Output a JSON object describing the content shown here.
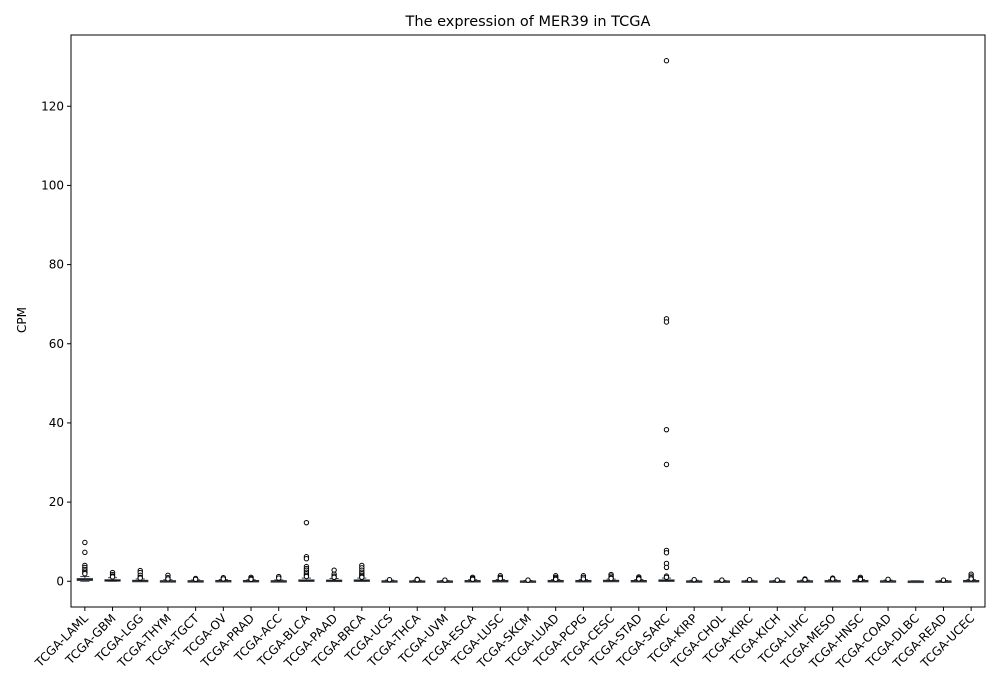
{
  "chart_data": {
    "type": "box",
    "title": "The expression of MER39 in TCGA",
    "xlabel": "",
    "ylabel": "CPM",
    "ylim": [
      -6.5,
      138
    ],
    "yticks": [
      0,
      20,
      40,
      60,
      80,
      100,
      120
    ],
    "grid": false,
    "legend": "none",
    "colors": {
      "box_fill": "#6b7b8c",
      "box_edge": "#3d4650",
      "median": "#111111",
      "outlier": "#000000",
      "axes": "#000000"
    },
    "categories": [
      "TCGA-LAML",
      "TCGA-GBM",
      "TCGA-LGG",
      "TCGA-THYM",
      "TCGA-TGCT",
      "TCGA-OV",
      "TCGA-PRAD",
      "TCGA-ACC",
      "TCGA-BLCA",
      "TCGA-PAAD",
      "TCGA-BRCA",
      "TCGA-UCS",
      "TCGA-THCA",
      "TCGA-UVM",
      "TCGA-ESCA",
      "TCGA-LUSC",
      "TCGA-SKCM",
      "TCGA-LUAD",
      "TCGA-PCPG",
      "TCGA-CESC",
      "TCGA-STAD",
      "TCGA-SARC",
      "TCGA-KIRP",
      "TCGA-CHOL",
      "TCGA-KIRC",
      "TCGA-KICH",
      "TCGA-LIHC",
      "TCGA-MESO",
      "TCGA-HNSC",
      "TCGA-COAD",
      "TCGA-DLBC",
      "TCGA-READ",
      "TCGA-UCEC"
    ],
    "boxes": [
      {
        "q1": 0.2,
        "median": 0.4,
        "q3": 0.7,
        "whisker_low": 0.0,
        "whisker_high": 1.2,
        "outliers": [
          9.8,
          7.3,
          4.0,
          3.5,
          3.0,
          2.6,
          2.2,
          1.9
        ]
      },
      {
        "q1": 0.05,
        "median": 0.2,
        "q3": 0.4,
        "whisker_low": 0.0,
        "whisker_high": 0.9,
        "outliers": [
          2.2,
          1.7,
          1.3,
          1.1
        ]
      },
      {
        "q1": 0.02,
        "median": 0.1,
        "q3": 0.25,
        "whisker_low": 0.0,
        "whisker_high": 0.6,
        "outliers": [
          2.7,
          2.2,
          1.5,
          1.0,
          0.8
        ]
      },
      {
        "q1": 0.0,
        "median": 0.05,
        "q3": 0.15,
        "whisker_low": 0.0,
        "whisker_high": 0.4,
        "outliers": [
          1.5,
          0.9,
          0.6
        ]
      },
      {
        "q1": 0.0,
        "median": 0.05,
        "q3": 0.15,
        "whisker_low": 0.0,
        "whisker_high": 0.35,
        "outliers": [
          0.7,
          0.5
        ]
      },
      {
        "q1": 0.02,
        "median": 0.1,
        "q3": 0.2,
        "whisker_low": 0.0,
        "whisker_high": 0.45,
        "outliers": [
          0.9,
          0.6
        ]
      },
      {
        "q1": 0.02,
        "median": 0.08,
        "q3": 0.2,
        "whisker_low": 0.0,
        "whisker_high": 0.4,
        "outliers": [
          1.0,
          0.7,
          0.5
        ]
      },
      {
        "q1": 0.0,
        "median": 0.05,
        "q3": 0.15,
        "whisker_low": 0.0,
        "whisker_high": 0.35,
        "outliers": [
          1.2,
          0.8
        ]
      },
      {
        "q1": 0.05,
        "median": 0.15,
        "q3": 0.35,
        "whisker_low": 0.0,
        "whisker_high": 0.8,
        "outliers": [
          14.8,
          6.2,
          5.7,
          3.7,
          3.2,
          2.8,
          2.3,
          1.9,
          1.5,
          1.2
        ]
      },
      {
        "q1": 0.05,
        "median": 0.15,
        "q3": 0.3,
        "whisker_low": 0.0,
        "whisker_high": 0.7,
        "outliers": [
          2.8,
          1.8,
          1.3,
          1.0
        ]
      },
      {
        "q1": 0.05,
        "median": 0.15,
        "q3": 0.35,
        "whisker_low": 0.0,
        "whisker_high": 0.8,
        "outliers": [
          4.0,
          3.4,
          2.8,
          2.3,
          1.9,
          1.5,
          1.2,
          1.0
        ]
      },
      {
        "q1": 0.0,
        "median": 0.05,
        "q3": 0.12,
        "whisker_low": 0.0,
        "whisker_high": 0.3,
        "outliers": [
          0.4
        ]
      },
      {
        "q1": 0.0,
        "median": 0.03,
        "q3": 0.1,
        "whisker_low": 0.0,
        "whisker_high": 0.25,
        "outliers": [
          0.5,
          0.4
        ]
      },
      {
        "q1": 0.0,
        "median": 0.03,
        "q3": 0.08,
        "whisker_low": 0.0,
        "whisker_high": 0.2,
        "outliers": [
          0.3
        ]
      },
      {
        "q1": 0.02,
        "median": 0.08,
        "q3": 0.18,
        "whisker_low": 0.0,
        "whisker_high": 0.4,
        "outliers": [
          1.0,
          0.7,
          0.5
        ]
      },
      {
        "q1": 0.02,
        "median": 0.08,
        "q3": 0.2,
        "whisker_low": 0.0,
        "whisker_high": 0.45,
        "outliers": [
          1.4,
          1.0,
          0.7
        ]
      },
      {
        "q1": 0.0,
        "median": 0.03,
        "q3": 0.08,
        "whisker_low": 0.0,
        "whisker_high": 0.2,
        "outliers": [
          0.3
        ]
      },
      {
        "q1": 0.02,
        "median": 0.08,
        "q3": 0.2,
        "whisker_low": 0.0,
        "whisker_high": 0.45,
        "outliers": [
          1.4,
          1.0,
          0.7,
          0.5
        ]
      },
      {
        "q1": 0.02,
        "median": 0.08,
        "q3": 0.2,
        "whisker_low": 0.0,
        "whisker_high": 0.45,
        "outliers": [
          1.4,
          1.0,
          0.6
        ]
      },
      {
        "q1": 0.02,
        "median": 0.1,
        "q3": 0.25,
        "whisker_low": 0.0,
        "whisker_high": 0.55,
        "outliers": [
          1.7,
          1.3,
          0.9,
          0.7
        ]
      },
      {
        "q1": 0.02,
        "median": 0.08,
        "q3": 0.2,
        "whisker_low": 0.0,
        "whisker_high": 0.45,
        "outliers": [
          1.1,
          0.8,
          0.6
        ]
      },
      {
        "q1": 0.05,
        "median": 0.15,
        "q3": 0.35,
        "whisker_low": 0.0,
        "whisker_high": 0.8,
        "outliers": [
          131.5,
          66.3,
          65.5,
          38.3,
          29.5,
          7.8,
          7.2,
          4.5,
          3.5,
          1.3,
          1.0
        ]
      },
      {
        "q1": 0.0,
        "median": 0.03,
        "q3": 0.1,
        "whisker_low": 0.0,
        "whisker_high": 0.25,
        "outliers": [
          0.4
        ]
      },
      {
        "q1": 0.0,
        "median": 0.03,
        "q3": 0.08,
        "whisker_low": 0.0,
        "whisker_high": 0.2,
        "outliers": [
          0.3
        ]
      },
      {
        "q1": 0.0,
        "median": 0.03,
        "q3": 0.1,
        "whisker_low": 0.0,
        "whisker_high": 0.25,
        "outliers": [
          0.4
        ]
      },
      {
        "q1": 0.0,
        "median": 0.03,
        "q3": 0.08,
        "whisker_low": 0.0,
        "whisker_high": 0.2,
        "outliers": [
          0.3
        ]
      },
      {
        "q1": 0.0,
        "median": 0.05,
        "q3": 0.12,
        "whisker_low": 0.0,
        "whisker_high": 0.3,
        "outliers": [
          0.6,
          0.4
        ]
      },
      {
        "q1": 0.02,
        "median": 0.08,
        "q3": 0.18,
        "whisker_low": 0.0,
        "whisker_high": 0.4,
        "outliers": [
          0.8,
          0.6
        ]
      },
      {
        "q1": 0.02,
        "median": 0.08,
        "q3": 0.2,
        "whisker_low": 0.0,
        "whisker_high": 0.45,
        "outliers": [
          1.0,
          0.7,
          0.5
        ]
      },
      {
        "q1": 0.0,
        "median": 0.05,
        "q3": 0.12,
        "whisker_low": 0.0,
        "whisker_high": 0.3,
        "outliers": [
          0.5
        ]
      },
      {
        "q1": 0.0,
        "median": 0.02,
        "q3": 0.05,
        "whisker_low": 0.0,
        "whisker_high": 0.12,
        "outliers": []
      },
      {
        "q1": 0.0,
        "median": 0.03,
        "q3": 0.08,
        "whisker_low": 0.0,
        "whisker_high": 0.2,
        "outliers": [
          0.3
        ]
      },
      {
        "q1": 0.02,
        "median": 0.08,
        "q3": 0.2,
        "whisker_low": 0.0,
        "whisker_high": 0.45,
        "outliers": [
          1.8,
          1.3,
          0.9,
          0.6
        ]
      }
    ]
  }
}
